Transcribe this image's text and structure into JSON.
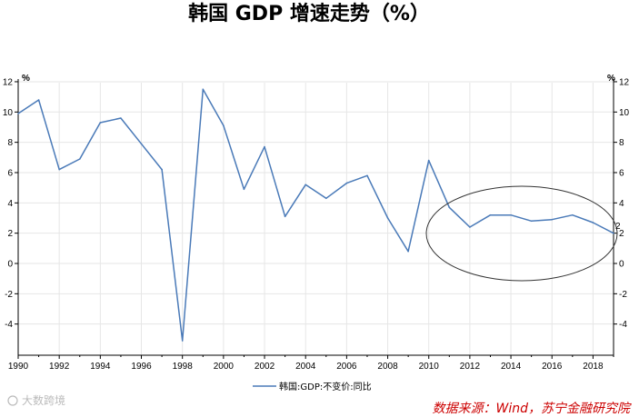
{
  "chart_data": {
    "type": "line",
    "title": "韩国 GDP 增速走势（%）",
    "ylabel_left": "%",
    "ylabel_right": "%",
    "ylim": [
      -5,
      12
    ],
    "yticks": [
      12,
      10,
      8,
      6,
      4,
      2,
      0,
      -2,
      -4
    ],
    "ytick_labels": [
      "12",
      "10",
      "8",
      "6",
      "4",
      "2",
      "0",
      "-2",
      "-4"
    ],
    "xlim": [
      1990,
      2019
    ],
    "xticks": [
      1990,
      1992,
      1994,
      1996,
      1998,
      2000,
      2002,
      2004,
      2006,
      2008,
      2010,
      2012,
      2014,
      2016,
      2018
    ],
    "xtick_labels": [
      "1990",
      "1992",
      "1994",
      "1996",
      "1998",
      "2000",
      "2002",
      "2004",
      "2006",
      "2008",
      "2010",
      "2012",
      "2014",
      "2016",
      "2018"
    ],
    "series": [
      {
        "name": "韩国:GDP:不变价:同比",
        "color": "#4a7ab8",
        "x": [
          1990,
          1991,
          1992,
          1993,
          1994,
          1995,
          1996,
          1997,
          1998,
          1999,
          2000,
          2001,
          2002,
          2003,
          2004,
          2005,
          2006,
          2007,
          2008,
          2009,
          2010,
          2011,
          2012,
          2013,
          2014,
          2015,
          2016,
          2017,
          2018,
          2019
        ],
        "values": [
          9.9,
          10.8,
          6.2,
          6.9,
          9.3,
          9.6,
          7.9,
          6.2,
          -5.1,
          11.5,
          9.1,
          4.9,
          7.7,
          3.1,
          5.2,
          4.3,
          5.3,
          5.8,
          3.0,
          0.8,
          6.8,
          3.7,
          2.4,
          3.2,
          3.2,
          2.8,
          2.9,
          3.2,
          2.7,
          2.0
        ]
      }
    ],
    "last_value_label": "2",
    "annotation": "ellipse-highlight",
    "grid": true,
    "legend_position": "bottom-center",
    "source": "数据来源：Wind，苏宁金融研究院",
    "watermark": "大数跨境"
  }
}
